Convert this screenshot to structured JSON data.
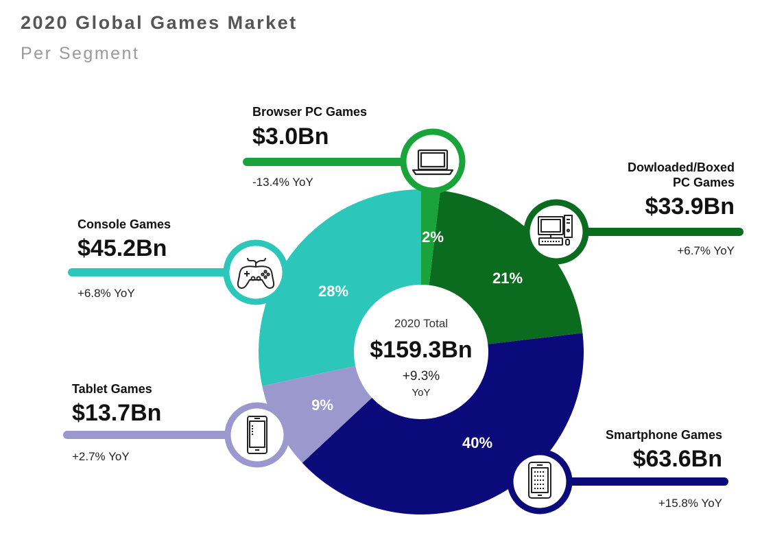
{
  "header": {
    "title": "2020 Global Games Market",
    "subtitle": "Per Segment"
  },
  "center": {
    "caption": "2020 Total",
    "total": "$159.3Bn",
    "growth": "+9.3%",
    "growth_unit": "YoY"
  },
  "colors": {
    "browser": "#1aa33a",
    "downloaded": "#0b6b1f",
    "smartphone": "#0b0a7a",
    "tablet": "#9a98cc",
    "console": "#2cc6bb"
  },
  "segments": {
    "browser": {
      "name": "Browser PC Games",
      "value": "$3.0Bn",
      "yoy": "-13.4% YoY",
      "pct_label": "2%",
      "icon": "laptop-icon"
    },
    "downloaded": {
      "name_line1": "Dowloaded/Boxed",
      "name_line2": "PC Games",
      "value": "$33.9Bn",
      "yoy": "+6.7% YoY",
      "pct_label": "21%",
      "icon": "desktop-pc-icon"
    },
    "smartphone": {
      "name": "Smartphone Games",
      "value": "$63.6Bn",
      "yoy": "+15.8% YoY",
      "pct_label": "40%",
      "icon": "smartphone-icon"
    },
    "tablet": {
      "name": "Tablet Games",
      "value": "$13.7Bn",
      "yoy": "+2.7% YoY",
      "pct_label": "9%",
      "icon": "tablet-icon"
    },
    "console": {
      "name": "Console Games",
      "value": "$45.2Bn",
      "yoy": "+6.8% YoY",
      "pct_label": "28%",
      "icon": "gamepad-icon"
    }
  },
  "chart_data": {
    "type": "pie",
    "title": "2020 Global Games Market",
    "subtitle": "Per Segment",
    "categories": [
      "Browser PC Games",
      "Dowloaded/Boxed PC Games",
      "Smartphone Games",
      "Tablet Games",
      "Console Games"
    ],
    "values": [
      3.0,
      33.9,
      63.6,
      13.7,
      45.2
    ],
    "percent_labels": [
      2,
      21,
      40,
      9,
      28
    ],
    "yoy_change_percent": [
      -13.4,
      6.7,
      15.8,
      2.7,
      6.8
    ],
    "unit": "$Bn",
    "total": 159.3,
    "total_yoy_percent": 9.3
  }
}
